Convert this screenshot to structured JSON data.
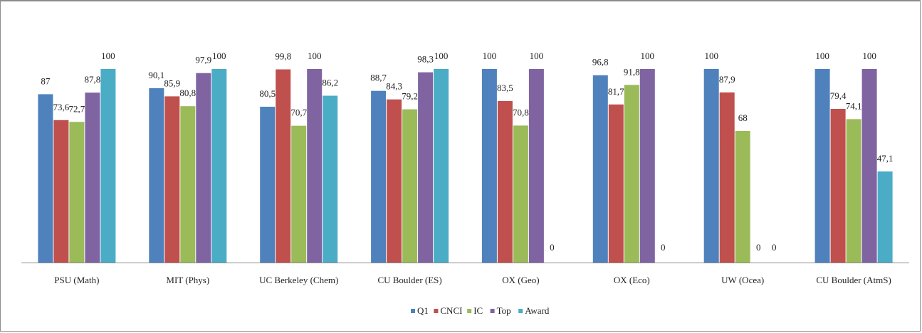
{
  "chart_data": {
    "type": "bar",
    "categories": [
      "PSU (Math)",
      "MIT (Phys)",
      "UC Berkeley (Chem)",
      "CU Boulder (ES)",
      "OX (Geo)",
      "OX (Eco)",
      "UW (Ocea)",
      "CU Boulder (AtmS)"
    ],
    "series": [
      {
        "name": "Q1",
        "color": "#4f81bd",
        "values": [
          87,
          90.1,
          80.5,
          88.7,
          100,
          96.8,
          100,
          100
        ],
        "labels": [
          "87",
          "90,1",
          "80,5",
          "88,7",
          "100",
          "96,8",
          "100",
          "100"
        ]
      },
      {
        "name": "CNCI",
        "color": "#c0504d",
        "values": [
          73.6,
          85.9,
          99.8,
          84.3,
          83.5,
          81.7,
          87.9,
          79.4
        ],
        "labels": [
          "73,6",
          "85,9",
          "99,8",
          "84,3",
          "83,5",
          "81,7",
          "87,9",
          "79,4"
        ]
      },
      {
        "name": "IC",
        "color": "#9bbb59",
        "values": [
          72.7,
          80.8,
          70.7,
          79.2,
          70.8,
          91.8,
          68,
          74.1
        ],
        "labels": [
          "72,7",
          "80,8",
          "70,7",
          "79,2",
          "70,8",
          "91,8",
          "68",
          "74,1"
        ]
      },
      {
        "name": "Top",
        "color": "#8064a2",
        "values": [
          87.8,
          97.9,
          100,
          98.3,
          100,
          100,
          0,
          100
        ],
        "labels": [
          "87,8",
          "97,9",
          "100",
          "98,3",
          "100",
          "100",
          "0",
          "100"
        ]
      },
      {
        "name": "Award",
        "color": "#4bacc6",
        "values": [
          100,
          100,
          86.2,
          100,
          0,
          0,
          0,
          47.1
        ],
        "labels": [
          "100",
          "100",
          "86,2",
          "100",
          "0",
          "0",
          "0",
          "47,1"
        ]
      }
    ],
    "ylim": [
      0,
      100
    ],
    "grid": false,
    "legend": "bottom"
  }
}
